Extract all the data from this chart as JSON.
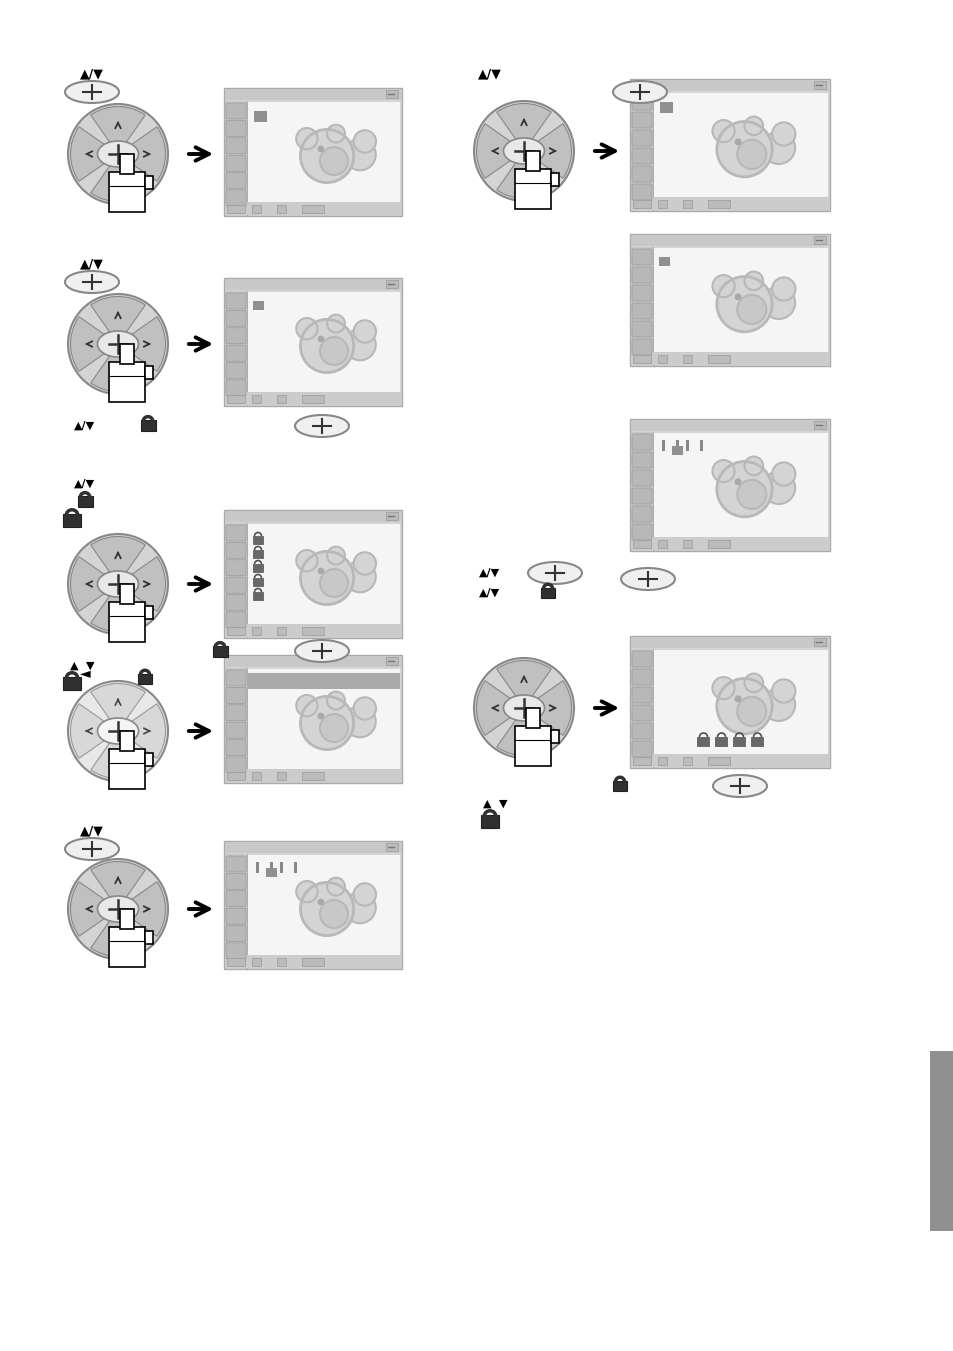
{
  "bg_color": "#ffffff",
  "sidebar_right_color": "#909090",
  "frame_outer": "#aaaaaa",
  "frame_inner_bg": "#e8e8e8",
  "frame_titlebar": "#cccccc",
  "frame_sidebar": "#c4c4c4",
  "frame_content": "#f5f5f5",
  "frame_statusbar": "#cccccc",
  "bear_body": "#d0d0d0",
  "bear_outline": "#d0d0d0",
  "bear_inner": "#c0c0c0",
  "controller_outer": "#d8d8d8",
  "controller_segments": "#c8c8c8",
  "controller_inner": "#f0f0f0",
  "controller_dark_segs": "#b0b0b0",
  "lock_color": "#303030",
  "arrow_color": "#000000",
  "small_sq_color": "#888888",
  "bracket_color": "#888888",
  "dark_bar_color": "#aaaaaa",
  "lock_small_color": "#606060"
}
